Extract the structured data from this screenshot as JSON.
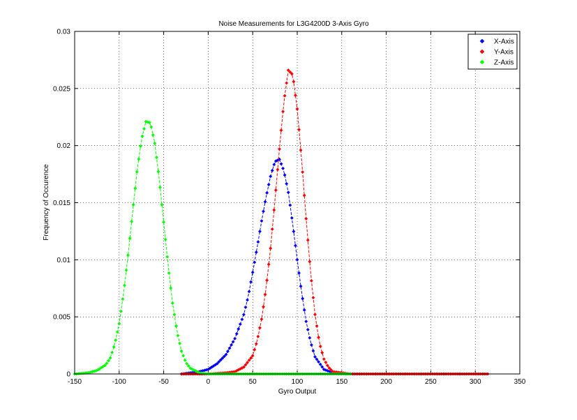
{
  "chart_data": {
    "type": "line",
    "title": "Noise Measurements for L3G4200D 3-Axis Gyro",
    "xlabel": "Gyro Output",
    "ylabel": "Frequency of Occurence",
    "xlim": [
      -150,
      350
    ],
    "ylim": [
      0,
      0.03
    ],
    "xticks": [
      "-150",
      "-100",
      "-50",
      "0",
      "50",
      "100",
      "150",
      "200",
      "250",
      "300",
      "350"
    ],
    "yticks": [
      "0",
      "0.005",
      "0.01",
      "0.015",
      "0.02",
      "0.025",
      "0.03"
    ],
    "grid": true,
    "legend_position": "top-right",
    "series": [
      {
        "name": "X-Axis",
        "color": "#0000ff",
        "marker": "diamond",
        "x": [
          -30,
          -20,
          -10,
          0,
          10,
          20,
          30,
          40,
          45,
          50,
          55,
          60,
          65,
          70,
          75,
          80,
          85,
          90,
          95,
          100,
          105,
          110,
          115,
          120,
          130,
          140,
          150,
          160
        ],
        "y": [
          0,
          0.0001,
          0.0002,
          0.0004,
          0.0009,
          0.0017,
          0.0031,
          0.0052,
          0.0068,
          0.0089,
          0.0111,
          0.0134,
          0.0155,
          0.0173,
          0.0186,
          0.0188,
          0.0178,
          0.0159,
          0.0131,
          0.01,
          0.0071,
          0.0046,
          0.0028,
          0.0015,
          0.0004,
          0.0001,
          0,
          0
        ]
      },
      {
        "name": "Y-Axis",
        "color": "#ff0000",
        "marker": "diamond",
        "x": [
          -30,
          0,
          20,
          30,
          40,
          50,
          55,
          60,
          65,
          70,
          75,
          80,
          85,
          90,
          95,
          100,
          105,
          110,
          115,
          120,
          125,
          130,
          135,
          140,
          150,
          160,
          200,
          250,
          300,
          315
        ],
        "y": [
          0,
          0,
          0.0001,
          0.0002,
          0.0006,
          0.0016,
          0.0029,
          0.0048,
          0.0075,
          0.011,
          0.0152,
          0.0197,
          0.0238,
          0.0266,
          0.0262,
          0.0232,
          0.0187,
          0.0136,
          0.0089,
          0.0052,
          0.0027,
          0.0013,
          0.0006,
          0.0002,
          0.0001,
          0,
          0,
          0,
          0,
          0
        ]
      },
      {
        "name": "Z-Axis",
        "color": "#00ff00",
        "marker": "diamond",
        "x": [
          -150,
          -135,
          -125,
          -115,
          -110,
          -105,
          -100,
          -95,
          -90,
          -85,
          -80,
          -75,
          -70,
          -65,
          -60,
          -55,
          -50,
          -45,
          -40,
          -35,
          -30,
          -25,
          -20,
          -10,
          0,
          20,
          50,
          100,
          160
        ],
        "y": [
          0,
          0.0001,
          0.0003,
          0.0008,
          0.0014,
          0.0026,
          0.0044,
          0.0071,
          0.0104,
          0.0141,
          0.0177,
          0.0205,
          0.0221,
          0.022,
          0.0202,
          0.0171,
          0.0133,
          0.0095,
          0.0062,
          0.0037,
          0.002,
          0.001,
          0.0005,
          0.0001,
          0,
          0,
          0,
          0,
          0
        ]
      }
    ]
  }
}
